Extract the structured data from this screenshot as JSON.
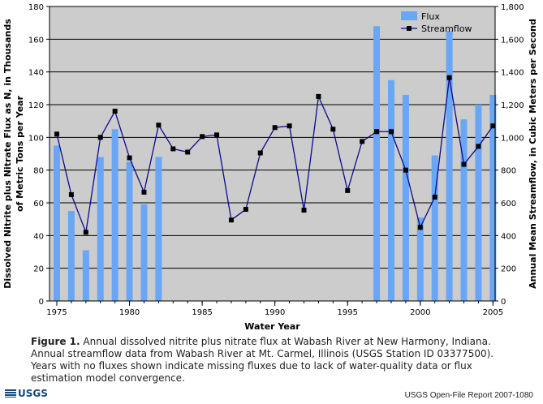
{
  "chart_data": {
    "type": "bar+line",
    "title": "",
    "xlabel": "Water Year",
    "ylabel_left": "Dissolved Nitrite plus Nitrate Flux as N, in Thousands of Metric Tons per Year",
    "ylabel_right": "Annual Mean Streamflow, in Cubic Meters per Second",
    "ylim_left": [
      0,
      180
    ],
    "ylim_right": [
      0,
      1800
    ],
    "xlim": [
      1975,
      2005
    ],
    "left_ticks": [
      "0",
      "20",
      "40",
      "60",
      "80",
      "100",
      "120",
      "140",
      "160",
      "180"
    ],
    "right_ticks": [
      "0",
      "200",
      "400",
      "600",
      "800",
      "1,000",
      "1,200",
      "1,400",
      "1,600",
      "1,800"
    ],
    "x_ticks": [
      "1975",
      "1980",
      "1985",
      "1990",
      "1995",
      "2000",
      "2005"
    ],
    "background_color": "#cccccc",
    "bar_color": "#69a6f5",
    "line_color": "#0a0a8c",
    "years": [
      1975,
      1976,
      1977,
      1978,
      1979,
      1980,
      1981,
      1982,
      1983,
      1984,
      1985,
      1986,
      1987,
      1988,
      1989,
      1990,
      1991,
      1992,
      1993,
      1994,
      1995,
      1996,
      1997,
      1998,
      1999,
      2000,
      2001,
      2002,
      2003,
      2004,
      2005
    ],
    "series": [
      {
        "name": "Flux",
        "type": "bar",
        "axis": "left",
        "values": [
          95,
          55,
          31,
          88,
          105,
          85,
          59,
          88,
          null,
          null,
          null,
          null,
          null,
          null,
          null,
          null,
          null,
          null,
          null,
          null,
          null,
          null,
          168,
          135,
          126,
          51,
          89,
          165,
          111,
          120,
          126
        ]
      },
      {
        "name": "Streamflow",
        "type": "line",
        "axis": "right",
        "values": [
          1020,
          650,
          420,
          1000,
          1160,
          875,
          665,
          1075,
          930,
          910,
          1005,
          1015,
          495,
          560,
          905,
          1060,
          1070,
          555,
          1250,
          1050,
          675,
          975,
          1035,
          1035,
          800,
          450,
          635,
          1365,
          835,
          945,
          1070
        ]
      }
    ],
    "legend": [
      "Flux",
      "Streamflow"
    ],
    "legend_position": "top-right"
  },
  "caption": {
    "label": "Figure 1.",
    "text": "Annual dissolved nitrite plus nitrate flux at Wabash River at New Harmony, Indiana. Annual streamflow data from Wabash River at Mt. Carmel, Illinois (USGS Station ID 03377500). Years with no fluxes shown indicate missing fluxes due to lack of water-quality data or flux estimation model convergence."
  },
  "footer": {
    "logo_text": "USGS",
    "report_text": "USGS Open-File Report 2007-1080"
  }
}
